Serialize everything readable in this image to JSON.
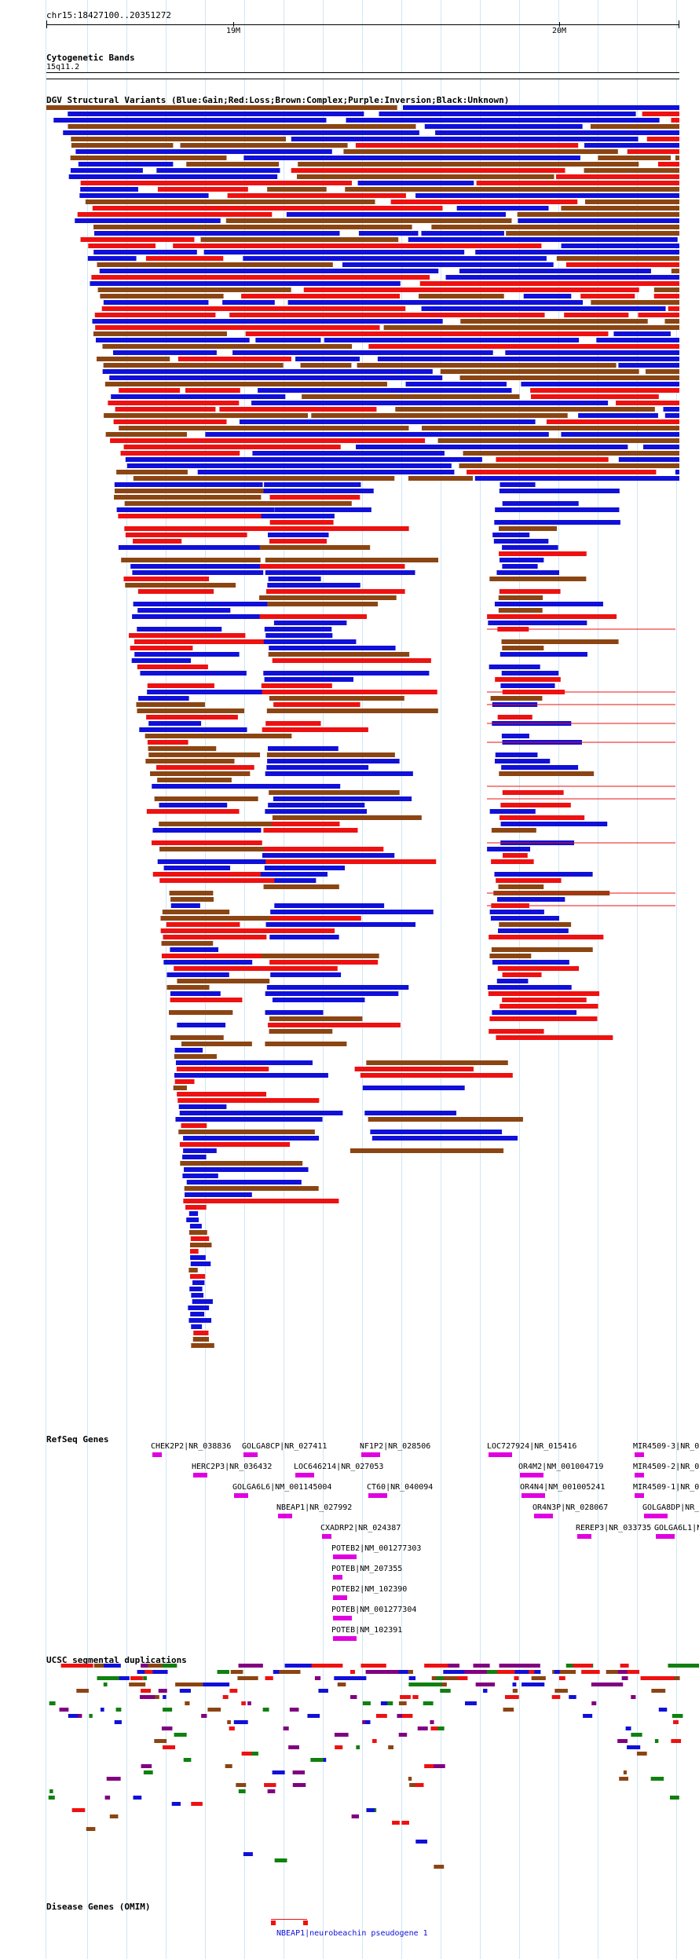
{
  "ruler": {
    "landmark": "chr15:18427100..20351272",
    "ticks": [
      "19M",
      "20M"
    ]
  },
  "tracks": {
    "cytoband": {
      "title": "Cytogenetic Bands",
      "band": "15q11.2"
    },
    "dgv": {
      "title": "DGV Structural Variants (Blue:Gain;Red:Loss;Brown:Complex;Purple:Inversion;Black:Unknown)"
    },
    "refseq": {
      "title": "RefSeq Genes"
    },
    "segdup": {
      "title": "UCSC segmental duplications"
    },
    "omim": {
      "title": "Disease Genes (OMIM)"
    }
  },
  "legend_colors": {
    "gain": "#1010d8",
    "loss": "#ee1111",
    "complex": "#8b4513",
    "inversion": "#800080",
    "unknown": "#000000",
    "gene": "#e000e0",
    "segdup_green": "#108010"
  },
  "refseq_genes": [
    "CHEK2P2|NR_038836",
    "GOLGA8CP|NR_027411",
    "NF1P2|NR_028506",
    "LOC727924|NR_015416",
    "MIR4509-3|NR_0",
    "HERC2P3|NR_036432",
    "LOC646214|NR_027053",
    "OR4M2|NM_001004719",
    "MIR4509-2|NR_0",
    "GOLGA6L6|NM_001145004",
    "CT60|NR_040094",
    "OR4N4|NM_001005241",
    "MIR4509-1|NR_0",
    "NBEAP1|NR_027992",
    "OR4N3P|NR_028067",
    "GOLGA8DP|NR_",
    "CXADRP2|NR_024387",
    "REREP3|NR_033735",
    "GOLGA6L1|NM_",
    "POTEB2|NM_001277303",
    "POTEB|NM_207355",
    "POTEB2|NM_102390",
    "POTEB|NM_001277304",
    "POTEB|NM_102391"
  ],
  "omim_genes": [
    "NBEAP1|neurobeachin pseudogene 1"
  ]
}
